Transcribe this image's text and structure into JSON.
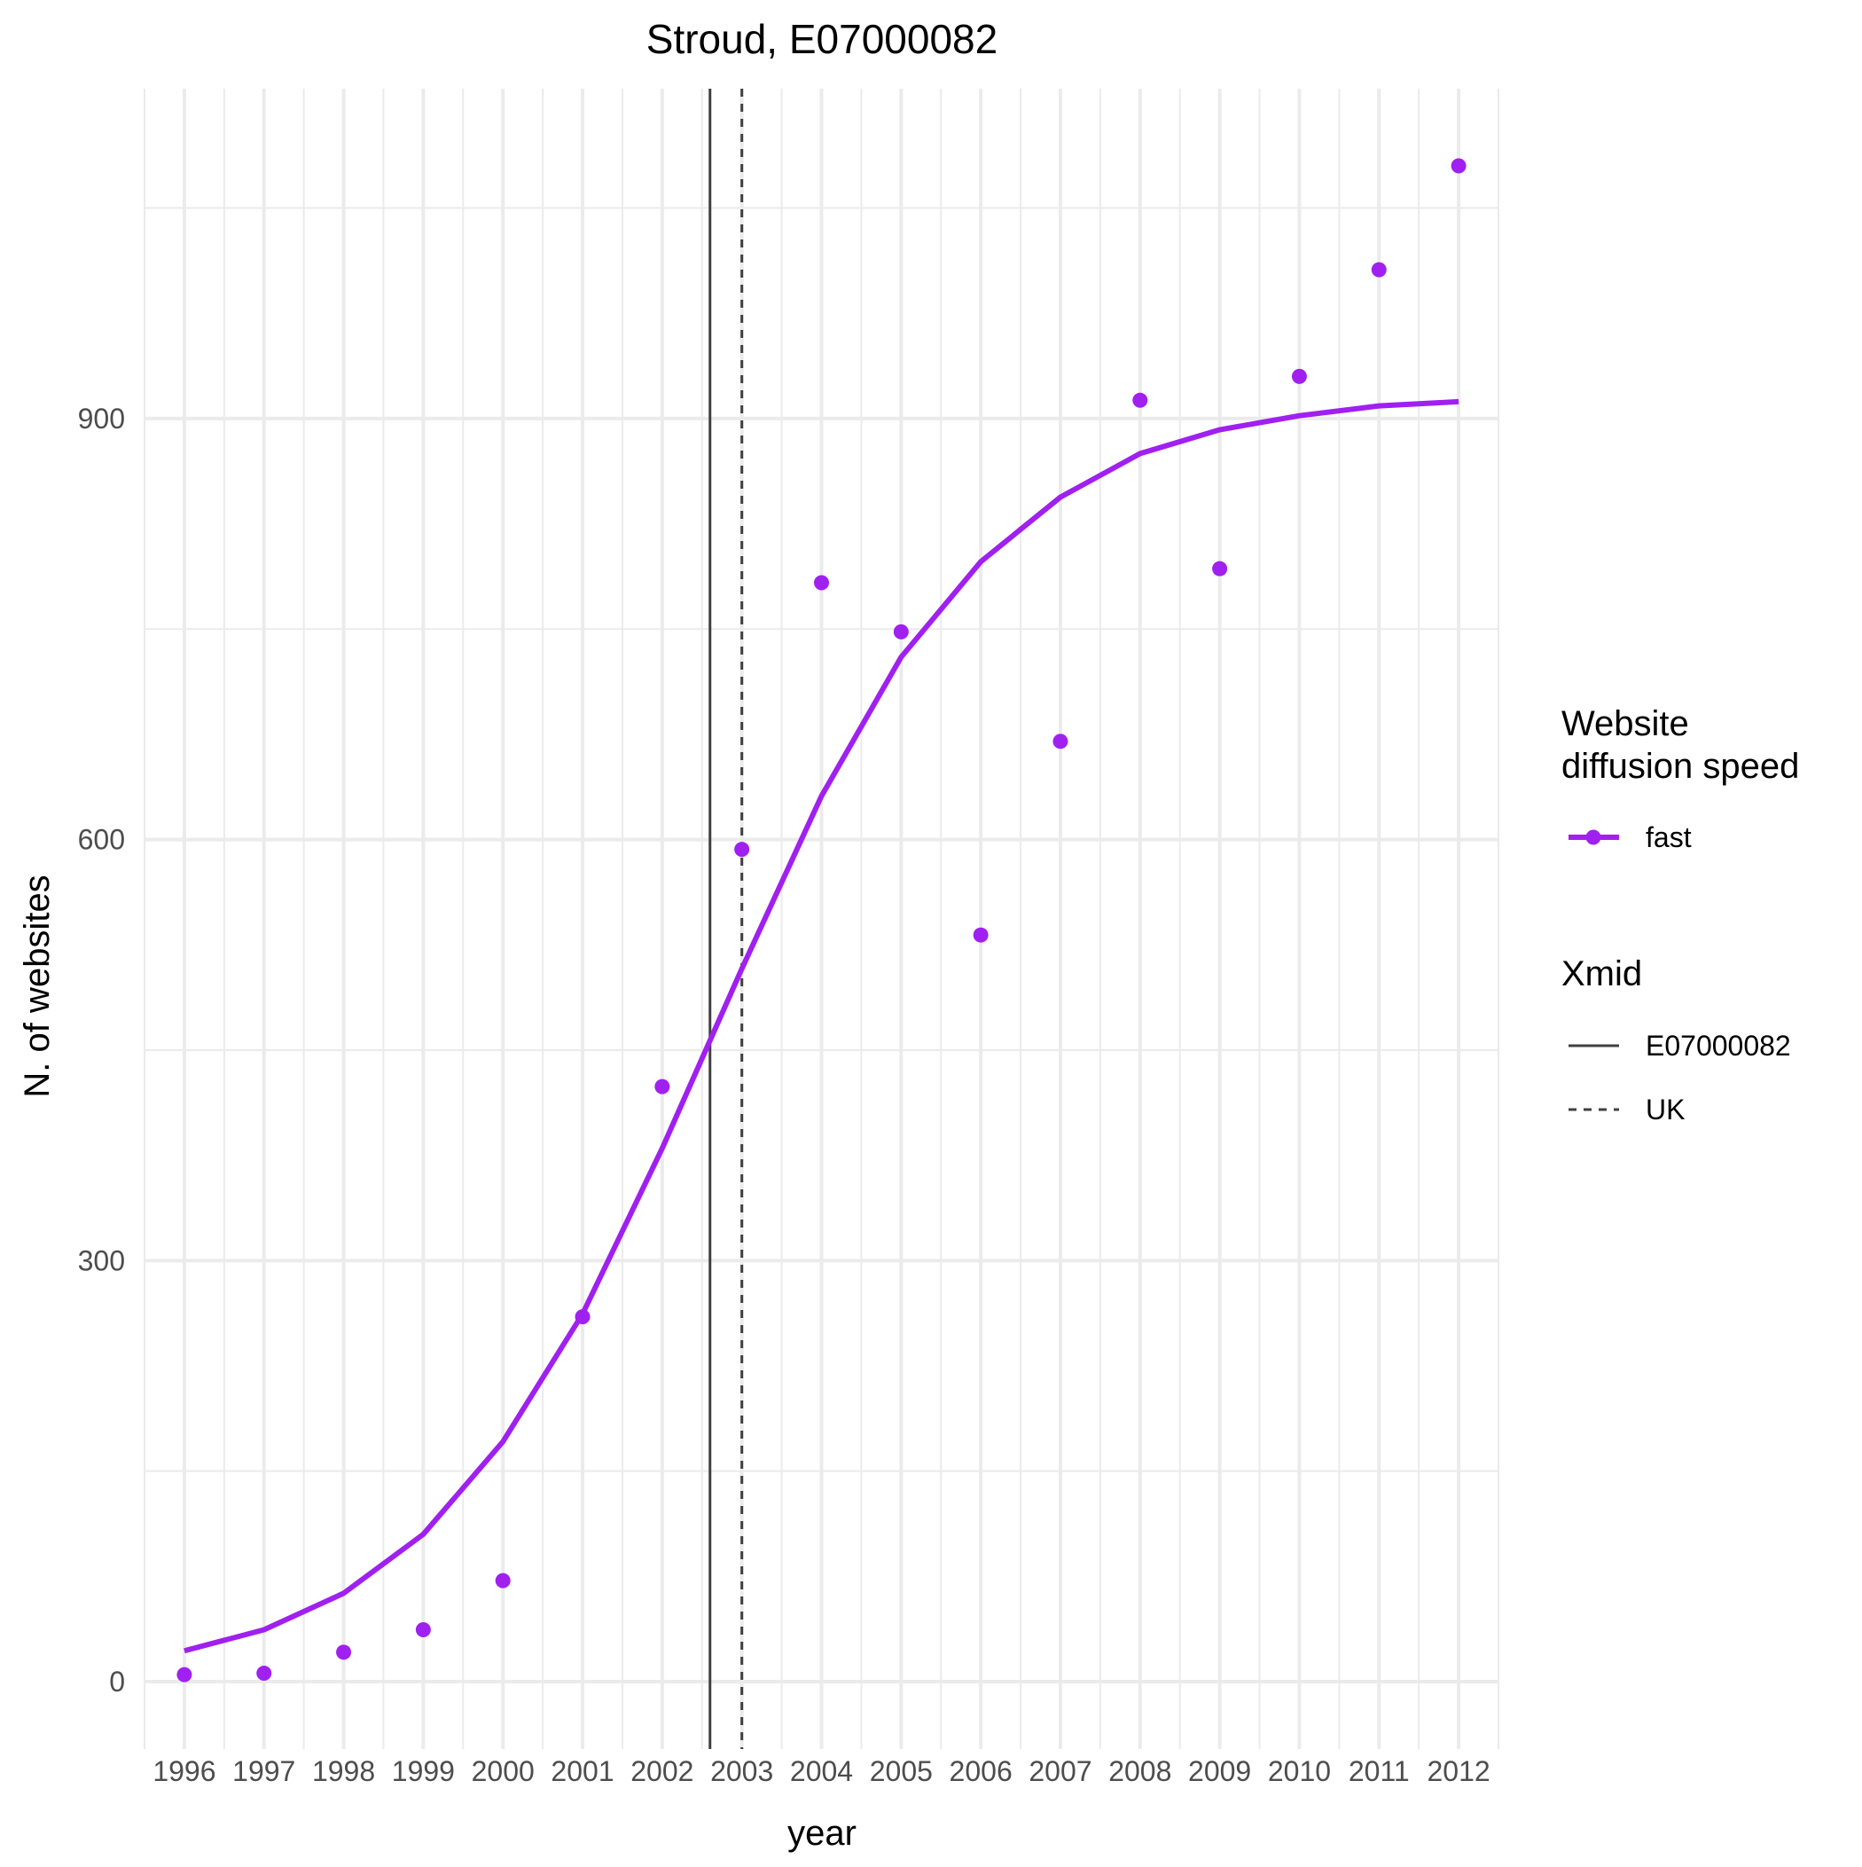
{
  "chart_data": {
    "type": "line",
    "title": "Stroud, E07000082",
    "xlabel": "year",
    "ylabel": "N. of websites",
    "categories": [
      "1996",
      "1997",
      "1998",
      "1999",
      "2000",
      "2001",
      "2002",
      "2003",
      "2004",
      "2005",
      "2006",
      "2007",
      "2008",
      "2009",
      "2010",
      "2011",
      "2012"
    ],
    "x": [
      1996,
      1997,
      1998,
      1999,
      2000,
      2001,
      2002,
      2003,
      2004,
      2005,
      2006,
      2007,
      2008,
      2009,
      2010,
      2011,
      2012
    ],
    "yticks": [
      0,
      300,
      600,
      900
    ],
    "xlim": [
      1995.5,
      2012.5
    ],
    "ylim": [
      -48,
      1135
    ],
    "grid": true,
    "series": [
      {
        "name": "fast",
        "kind": "points",
        "color": "#a020f0",
        "values": [
          5,
          6,
          21,
          37,
          72,
          260,
          424,
          593,
          783,
          748,
          532,
          670,
          913,
          793,
          930,
          1006,
          1080
        ]
      },
      {
        "name": "fast",
        "kind": "line",
        "color": "#a020f0",
        "values": [
          22,
          37,
          63,
          105,
          171,
          262,
          380,
          508,
          631,
          730,
          798,
          844,
          875,
          892,
          902,
          909,
          912
        ]
      }
    ],
    "vlines": [
      {
        "label": "E07000082",
        "x": 2002.6,
        "style": "solid",
        "color": "#404040"
      },
      {
        "label": "UK",
        "x": 2003.0,
        "style": "dashed",
        "color": "#404040"
      }
    ],
    "legend": {
      "placement": "right",
      "groups": [
        {
          "title_lines": [
            "Website",
            "diffusion speed"
          ],
          "items": [
            {
              "label": "fast",
              "kind": "point-line",
              "color": "#a020f0"
            }
          ]
        },
        {
          "title_lines": [
            "Xmid"
          ],
          "items": [
            {
              "label": "E07000082",
              "kind": "solid"
            },
            {
              "label": "UK",
              "kind": "dashed"
            }
          ]
        }
      ]
    }
  }
}
